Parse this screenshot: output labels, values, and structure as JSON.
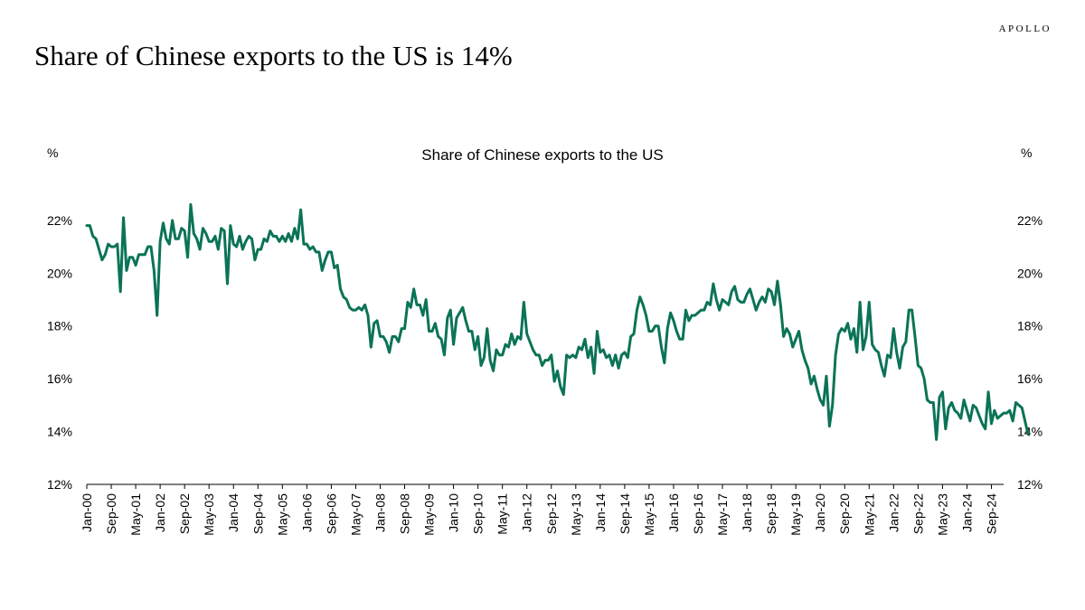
{
  "brand": "APOLLO",
  "headline": "Share of Chinese exports to the US is 14%",
  "colors": {
    "line": "#0b7356",
    "axis": "#000000",
    "text": "#000000"
  },
  "chart_data": {
    "type": "line",
    "title": "Share of Chinese exports to the US",
    "ylabel_left": "%",
    "ylabel_right": "%",
    "ylim": [
      12,
      23.5
    ],
    "yticks": [
      12,
      14,
      16,
      18,
      20,
      22
    ],
    "ytick_labels": [
      "12%",
      "14%",
      "16%",
      "18%",
      "20%",
      "22%"
    ],
    "grid": false,
    "xtick_labels": [
      "Jan-00",
      "Sep-00",
      "May-01",
      "Jan-02",
      "Sep-02",
      "May-03",
      "Jan-04",
      "Sep-04",
      "May-05",
      "Jan-06",
      "Sep-06",
      "May-07",
      "Jan-08",
      "Sep-08",
      "May-09",
      "Jan-10",
      "Sep-10",
      "May-11",
      "Jan-12",
      "Sep-12",
      "May-13",
      "Jan-14",
      "Sep-14",
      "May-15",
      "Jan-16",
      "Sep-16",
      "May-17",
      "Jan-18",
      "Sep-18",
      "May-19",
      "Jan-20",
      "Sep-20",
      "May-21",
      "Jan-22",
      "Sep-22",
      "May-23",
      "Jan-24",
      "Sep-24"
    ],
    "x_start": "Jan-00",
    "x_end": "Jan-25",
    "series": [
      {
        "values": [
          21.8,
          21.8,
          21.4,
          21.3,
          20.9,
          20.5,
          20.7,
          21.1,
          21.0,
          21.0,
          21.1,
          19.3,
          22.1,
          20.1,
          20.6,
          20.6,
          20.3,
          20.7,
          20.7,
          20.7,
          21.0,
          21.0,
          20.1,
          18.4,
          21.2,
          21.9,
          21.3,
          21.1,
          22.0,
          21.3,
          21.3,
          21.7,
          21.6,
          20.6,
          22.6,
          21.5,
          21.3,
          20.9,
          21.7,
          21.5,
          21.2,
          21.2,
          21.4,
          20.9,
          21.7,
          21.6,
          19.6,
          21.8,
          21.1,
          21.0,
          21.4,
          20.9,
          21.2,
          21.4,
          21.3,
          20.5,
          20.9,
          20.9,
          21.3,
          21.2,
          21.6,
          21.4,
          21.4,
          21.2,
          21.4,
          21.2,
          21.5,
          21.2,
          21.7,
          21.3,
          22.4,
          21.1,
          21.1,
          20.9,
          21.0,
          20.8,
          20.8,
          20.1,
          20.5,
          20.8,
          20.8,
          20.2,
          20.3,
          19.4,
          19.1,
          19.0,
          18.7,
          18.6,
          18.6,
          18.7,
          18.6,
          18.8,
          18.4,
          17.2,
          18.1,
          18.2,
          17.6,
          17.6,
          17.4,
          17.0,
          17.6,
          17.6,
          17.4,
          17.9,
          17.9,
          18.9,
          18.7,
          19.4,
          18.8,
          18.8,
          18.4,
          19.0,
          17.8,
          17.8,
          18.1,
          17.6,
          17.5,
          16.9,
          18.3,
          18.6,
          17.3,
          18.3,
          18.5,
          18.7,
          18.2,
          17.8,
          17.8,
          17.1,
          17.6,
          16.5,
          16.8,
          17.9,
          16.7,
          16.3,
          17.1,
          16.9,
          16.9,
          17.3,
          17.2,
          17.7,
          17.3,
          17.6,
          17.5,
          18.9,
          17.7,
          17.4,
          17.1,
          16.9,
          16.9,
          16.5,
          16.7,
          16.7,
          16.9,
          15.9,
          16.3,
          15.7,
          15.4,
          16.9,
          16.8,
          16.9,
          16.8,
          17.2,
          17.1,
          17.5,
          16.8,
          17.2,
          16.2,
          17.8,
          17.0,
          17.1,
          16.8,
          16.9,
          16.5,
          16.9,
          16.4,
          16.9,
          17.0,
          16.8,
          17.6,
          17.7,
          18.6,
          19.1,
          18.8,
          18.4,
          17.8,
          17.8,
          18.0,
          18.0,
          17.2,
          16.6,
          17.9,
          18.5,
          18.2,
          17.8,
          17.5,
          17.5,
          18.6,
          18.2,
          18.4,
          18.4,
          18.5,
          18.6,
          18.6,
          18.9,
          18.8,
          19.6,
          19.0,
          18.6,
          19.0,
          18.9,
          18.8,
          19.3,
          19.5,
          19.0,
          18.9,
          18.9,
          19.2,
          19.4,
          19.0,
          18.6,
          18.9,
          19.1,
          18.9,
          19.4,
          19.3,
          18.8,
          19.7,
          18.8,
          17.6,
          17.9,
          17.7,
          17.2,
          17.5,
          17.8,
          17.1,
          16.7,
          16.4,
          15.8,
          16.1,
          15.6,
          15.2,
          15.0,
          16.1,
          14.2,
          15.0,
          16.9,
          17.7,
          17.9,
          17.8,
          18.1,
          17.5,
          17.9,
          17.0,
          18.9,
          17.1,
          17.6,
          18.9,
          17.3,
          17.1,
          17.0,
          16.5,
          16.1,
          16.9,
          16.8,
          17.9,
          17.0,
          16.4,
          17.2,
          17.4,
          18.6,
          18.6,
          17.6,
          16.5,
          16.4,
          16.0,
          15.2,
          15.1,
          15.1,
          13.7,
          15.3,
          15.5,
          14.1,
          14.9,
          15.1,
          14.8,
          14.7,
          14.5,
          15.2,
          14.8,
          14.4,
          15.0,
          14.9,
          14.6,
          14.3,
          14.1,
          15.5,
          14.3,
          14.8,
          14.5,
          14.6,
          14.7,
          14.7,
          14.8,
          14.4,
          15.1,
          15.0,
          14.9,
          14.4,
          13.9
        ]
      }
    ]
  }
}
